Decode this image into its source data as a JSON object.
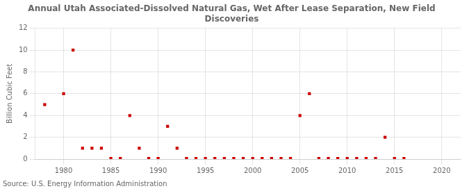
{
  "chart_data": {
    "type": "scatter",
    "title": "Annual Utah Associated-Dissolved Natural Gas, Wet After Lease Separation, New Field\nDiscoveries",
    "ylabel": "Billion Cubic Feet",
    "annotations": [
      "Source: U.S. Energy Information Administration"
    ],
    "x": [
      1978,
      1980,
      1981,
      1982,
      1983,
      1984,
      1985,
      1986,
      1987,
      1988,
      1989,
      1990,
      1991,
      1992,
      1993,
      1994,
      1995,
      1996,
      1997,
      1998,
      1999,
      2000,
      2001,
      2002,
      2003,
      2004,
      2005,
      2006,
      2007,
      2008,
      2009,
      2010,
      2011,
      2012,
      2013,
      2014,
      2015,
      2016
    ],
    "values": [
      5.0,
      6.0,
      10.0,
      1.0,
      1.0,
      1.0,
      0.05,
      0.05,
      4.0,
      1.0,
      0.05,
      0.05,
      3.0,
      1.0,
      0.05,
      0.05,
      0.05,
      0.05,
      0.05,
      0.05,
      0.05,
      0.05,
      0.05,
      0.05,
      0.05,
      0.05,
      4.0,
      6.0,
      0.05,
      0.05,
      0.05,
      0.05,
      0.05,
      0.05,
      0.05,
      2.0,
      0.05,
      0.05
    ],
    "color": "#cc0000",
    "marker": "square",
    "xlim": [
      1977,
      2022
    ],
    "ylim": [
      0,
      12
    ],
    "xticks": [
      1980,
      1985,
      1990,
      1995,
      2000,
      2005,
      2010,
      2015,
      2020
    ],
    "yticks": [
      0,
      2,
      4,
      6,
      8,
      10,
      12
    ],
    "grid": true
  }
}
